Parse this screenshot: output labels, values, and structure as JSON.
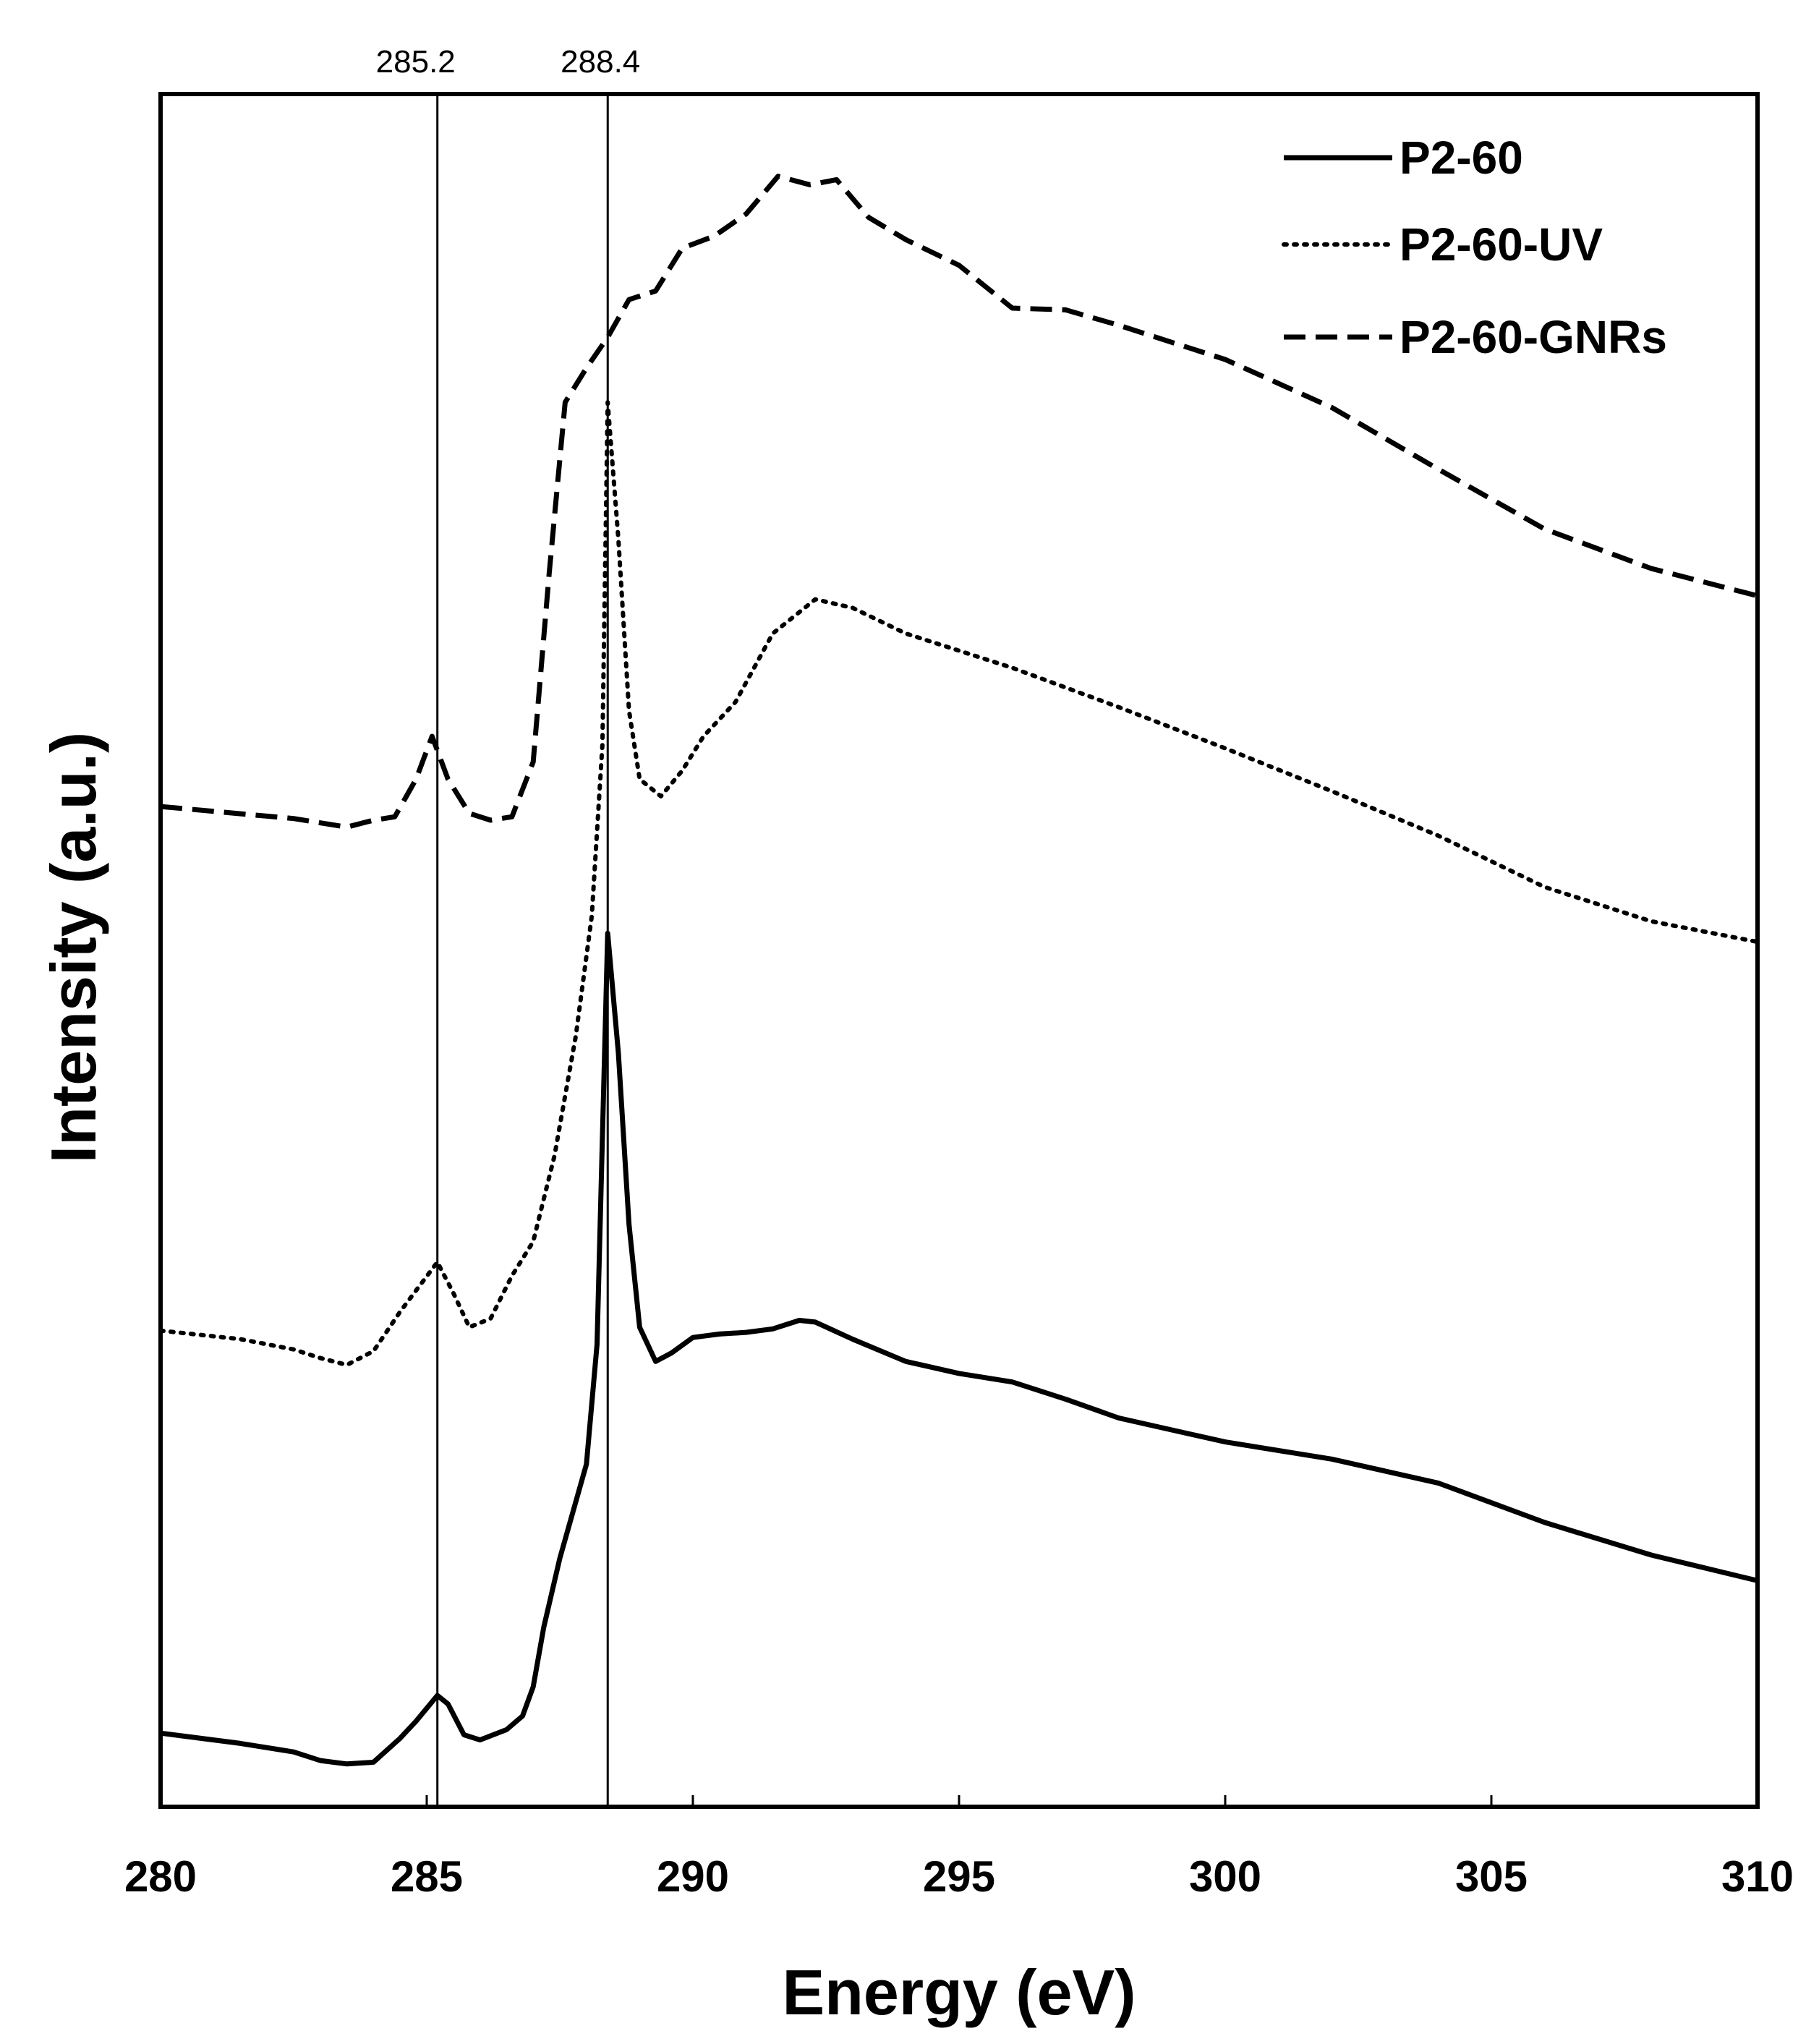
{
  "chart_data": {
    "type": "line",
    "title": "",
    "xlabel": "Energy (eV)",
    "ylabel": "Intensity (a.u.)",
    "xlim": [
      280,
      310
    ],
    "ylim": [
      0,
      100
    ],
    "x_ticks": [
      "280",
      "285",
      "290",
      "295",
      "300",
      "305",
      "310"
    ],
    "y_ticks_shown": false,
    "grid": false,
    "legend_position": "top-right",
    "reference_lines": [
      {
        "x": 285.2,
        "label": "285.2"
      },
      {
        "x": 288.4,
        "label": "288.4"
      }
    ],
    "series": [
      {
        "name": "P2-60",
        "style": "solid",
        "points": [
          [
            280,
            4.3
          ],
          [
            281.5,
            3.7
          ],
          [
            282.5,
            3.2
          ],
          [
            283,
            2.7
          ],
          [
            283.5,
            2.5
          ],
          [
            284,
            2.6
          ],
          [
            284.5,
            4.0
          ],
          [
            284.8,
            5.0
          ],
          [
            285.2,
            6.5
          ],
          [
            285.4,
            6.0
          ],
          [
            285.7,
            4.2
          ],
          [
            286,
            3.9
          ],
          [
            286.5,
            4.5
          ],
          [
            286.8,
            5.3
          ],
          [
            287,
            7.0
          ],
          [
            287.2,
            10.5
          ],
          [
            287.5,
            14.5
          ],
          [
            288,
            20.0
          ],
          [
            288.2,
            27.0
          ],
          [
            288.4,
            51.0
          ],
          [
            288.6,
            44.0
          ],
          [
            288.8,
            34.0
          ],
          [
            289,
            28.0
          ],
          [
            289.3,
            26.0
          ],
          [
            289.6,
            26.5
          ],
          [
            290,
            27.4
          ],
          [
            290.5,
            27.6
          ],
          [
            291,
            27.7
          ],
          [
            291.5,
            27.9
          ],
          [
            292,
            28.4
          ],
          [
            292.3,
            28.3
          ],
          [
            293,
            27.3
          ],
          [
            294,
            26.0
          ],
          [
            295,
            25.3
          ],
          [
            296,
            24.8
          ],
          [
            297,
            23.8
          ],
          [
            298,
            22.7
          ],
          [
            300,
            21.3
          ],
          [
            302,
            20.3
          ],
          [
            304,
            18.9
          ],
          [
            306,
            16.6
          ],
          [
            308,
            14.7
          ],
          [
            310,
            13.2
          ]
        ]
      },
      {
        "name": "P2-60-UV",
        "style": "dotted",
        "points": [
          [
            280,
            27.8
          ],
          [
            281.5,
            27.3
          ],
          [
            282.5,
            26.7
          ],
          [
            283,
            26.2
          ],
          [
            283.5,
            25.8
          ],
          [
            284,
            26.6
          ],
          [
            284.5,
            28.9
          ],
          [
            285.2,
            31.8
          ],
          [
            285.5,
            30.0
          ],
          [
            285.8,
            28.0
          ],
          [
            286.2,
            28.5
          ],
          [
            286.6,
            31.0
          ],
          [
            287,
            33.0
          ],
          [
            287.4,
            38.0
          ],
          [
            287.8,
            45.0
          ],
          [
            288.1,
            52.0
          ],
          [
            288.3,
            62.0
          ],
          [
            288.4,
            82.0
          ],
          [
            288.6,
            74.0
          ],
          [
            288.8,
            64.0
          ],
          [
            289,
            60.0
          ],
          [
            289.4,
            59.0
          ],
          [
            289.8,
            60.5
          ],
          [
            290.2,
            62.5
          ],
          [
            290.8,
            64.5
          ],
          [
            291.5,
            68.5
          ],
          [
            292.3,
            70.5
          ],
          [
            293,
            70.0
          ],
          [
            294,
            68.5
          ],
          [
            295,
            67.5
          ],
          [
            296,
            66.5
          ],
          [
            298,
            64.2
          ],
          [
            300,
            61.8
          ],
          [
            302,
            59.3
          ],
          [
            304,
            56.7
          ],
          [
            306,
            53.7
          ],
          [
            308,
            51.7
          ],
          [
            310,
            50.5
          ]
        ]
      },
      {
        "name": "P2-60-GNRs",
        "style": "dashed",
        "points": [
          [
            280,
            58.4
          ],
          [
            282.5,
            57.7
          ],
          [
            283.5,
            57.2
          ],
          [
            284,
            57.6
          ],
          [
            284.4,
            57.8
          ],
          [
            284.8,
            60.0
          ],
          [
            285.1,
            62.5
          ],
          [
            285.4,
            60.0
          ],
          [
            285.8,
            58.0
          ],
          [
            286.2,
            57.6
          ],
          [
            286.6,
            57.8
          ],
          [
            287,
            61.0
          ],
          [
            287.3,
            72.0
          ],
          [
            287.6,
            82.0
          ],
          [
            288,
            84.0
          ],
          [
            288.4,
            85.8
          ],
          [
            288.8,
            88.0
          ],
          [
            289.3,
            88.5
          ],
          [
            289.8,
            91.0
          ],
          [
            290.4,
            91.7
          ],
          [
            291,
            93.0
          ],
          [
            291.6,
            95.2
          ],
          [
            292.2,
            94.7
          ],
          [
            292.7,
            95.0
          ],
          [
            293.3,
            92.8
          ],
          [
            294,
            91.5
          ],
          [
            295,
            90.0
          ],
          [
            296,
            87.5
          ],
          [
            297,
            87.4
          ],
          [
            298,
            86.5
          ],
          [
            300,
            84.5
          ],
          [
            302,
            81.7
          ],
          [
            304,
            78.1
          ],
          [
            306,
            74.6
          ],
          [
            308,
            72.3
          ],
          [
            310,
            70.7
          ]
        ]
      }
    ]
  }
}
